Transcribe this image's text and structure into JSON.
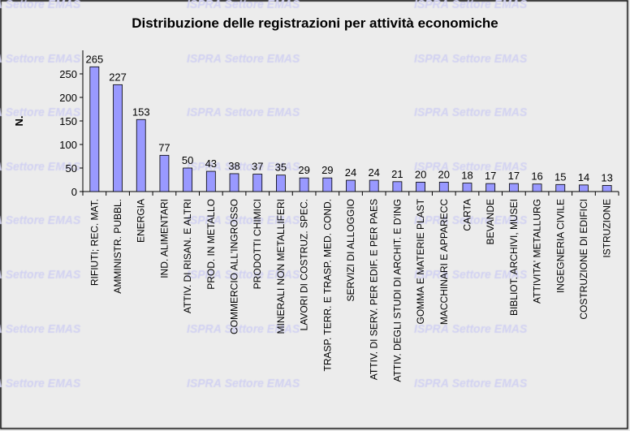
{
  "chart_data": {
    "type": "bar",
    "title": "Distribuzione delle registrazioni per attività economiche",
    "xlabel": "",
    "ylabel": "N.",
    "ylim": [
      0,
      300
    ],
    "yticks": [
      0,
      50,
      100,
      150,
      200,
      250
    ],
    "grid": false,
    "bar_color": "#9999ff",
    "background": "#ececec",
    "watermark": "ISPRA Settore EMAS",
    "categories": [
      "RIFIUTI; REC. MAT.",
      "AMMINISTR. PUBBL.",
      "ENERGIA",
      "IND. ALIMENTARI",
      "ATTIV. DI RISAN. E ALTRI",
      "PROD. IN METALLO",
      "COMMERCIO ALL'INGROSSO",
      "PRODOTTI CHIMICI",
      "MINERALI NON METALLIFERI",
      "LAVORI DI COSTRUZ. SPEC.",
      "TRASP. TERR. E TRASP. MED. COND.",
      "SERVIZI DI ALLOGGIO",
      "ATTIV. DI SERV. PER EDIF. E PER PAES",
      "ATTIV. DEGLI STUDI DI ARCHIT. E D'ING",
      "GOMMA E MATERIE PLAST",
      "MACCHINARI E APPARECC",
      "CARTA",
      "BEVANDE",
      "BIBLIOT. ARCHIVI, MUSEI",
      "ATTIVITA' METALLURG",
      "INGEGNERIA CIVILE",
      "COSTRUZIONE DI EDIFICI",
      "ISTRUZIONE"
    ],
    "values": [
      265,
      227,
      153,
      77,
      50,
      43,
      38,
      37,
      35,
      29,
      29,
      24,
      24,
      21,
      20,
      20,
      18,
      17,
      17,
      16,
      15,
      14,
      13
    ]
  }
}
